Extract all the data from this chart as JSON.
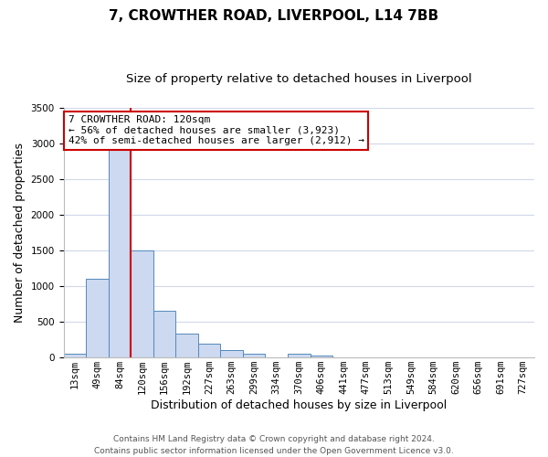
{
  "title": "7, CROWTHER ROAD, LIVERPOOL, L14 7BB",
  "subtitle": "Size of property relative to detached houses in Liverpool",
  "xlabel": "Distribution of detached houses by size in Liverpool",
  "ylabel": "Number of detached properties",
  "bin_labels": [
    "13sqm",
    "49sqm",
    "84sqm",
    "120sqm",
    "156sqm",
    "192sqm",
    "227sqm",
    "263sqm",
    "299sqm",
    "334sqm",
    "370sqm",
    "406sqm",
    "441sqm",
    "477sqm",
    "513sqm",
    "549sqm",
    "584sqm",
    "620sqm",
    "656sqm",
    "691sqm",
    "727sqm"
  ],
  "bar_values": [
    50,
    1100,
    2920,
    1500,
    650,
    330,
    200,
    100,
    50,
    0,
    50,
    25,
    0,
    0,
    0,
    0,
    0,
    0,
    0,
    0,
    0
  ],
  "bar_color": "#ccd9f0",
  "bar_edge_color": "#5588bb",
  "vline_color": "#cc0000",
  "annotation_text": "7 CROWTHER ROAD: 120sqm\n← 56% of detached houses are smaller (3,923)\n42% of semi-detached houses are larger (2,912) →",
  "annotation_box_color": "#ffffff",
  "annotation_box_edge_color": "#cc0000",
  "ylim": [
    0,
    3500
  ],
  "yticks": [
    0,
    500,
    1000,
    1500,
    2000,
    2500,
    3000,
    3500
  ],
  "footer_line1": "Contains HM Land Registry data © Crown copyright and database right 2024.",
  "footer_line2": "Contains public sector information licensed under the Open Government Licence v3.0.",
  "bg_color": "#ffffff",
  "grid_color": "#d0d8e8",
  "title_fontsize": 11,
  "subtitle_fontsize": 9.5,
  "label_fontsize": 9,
  "tick_fontsize": 7.5,
  "annotation_fontsize": 8,
  "footer_fontsize": 6.5
}
